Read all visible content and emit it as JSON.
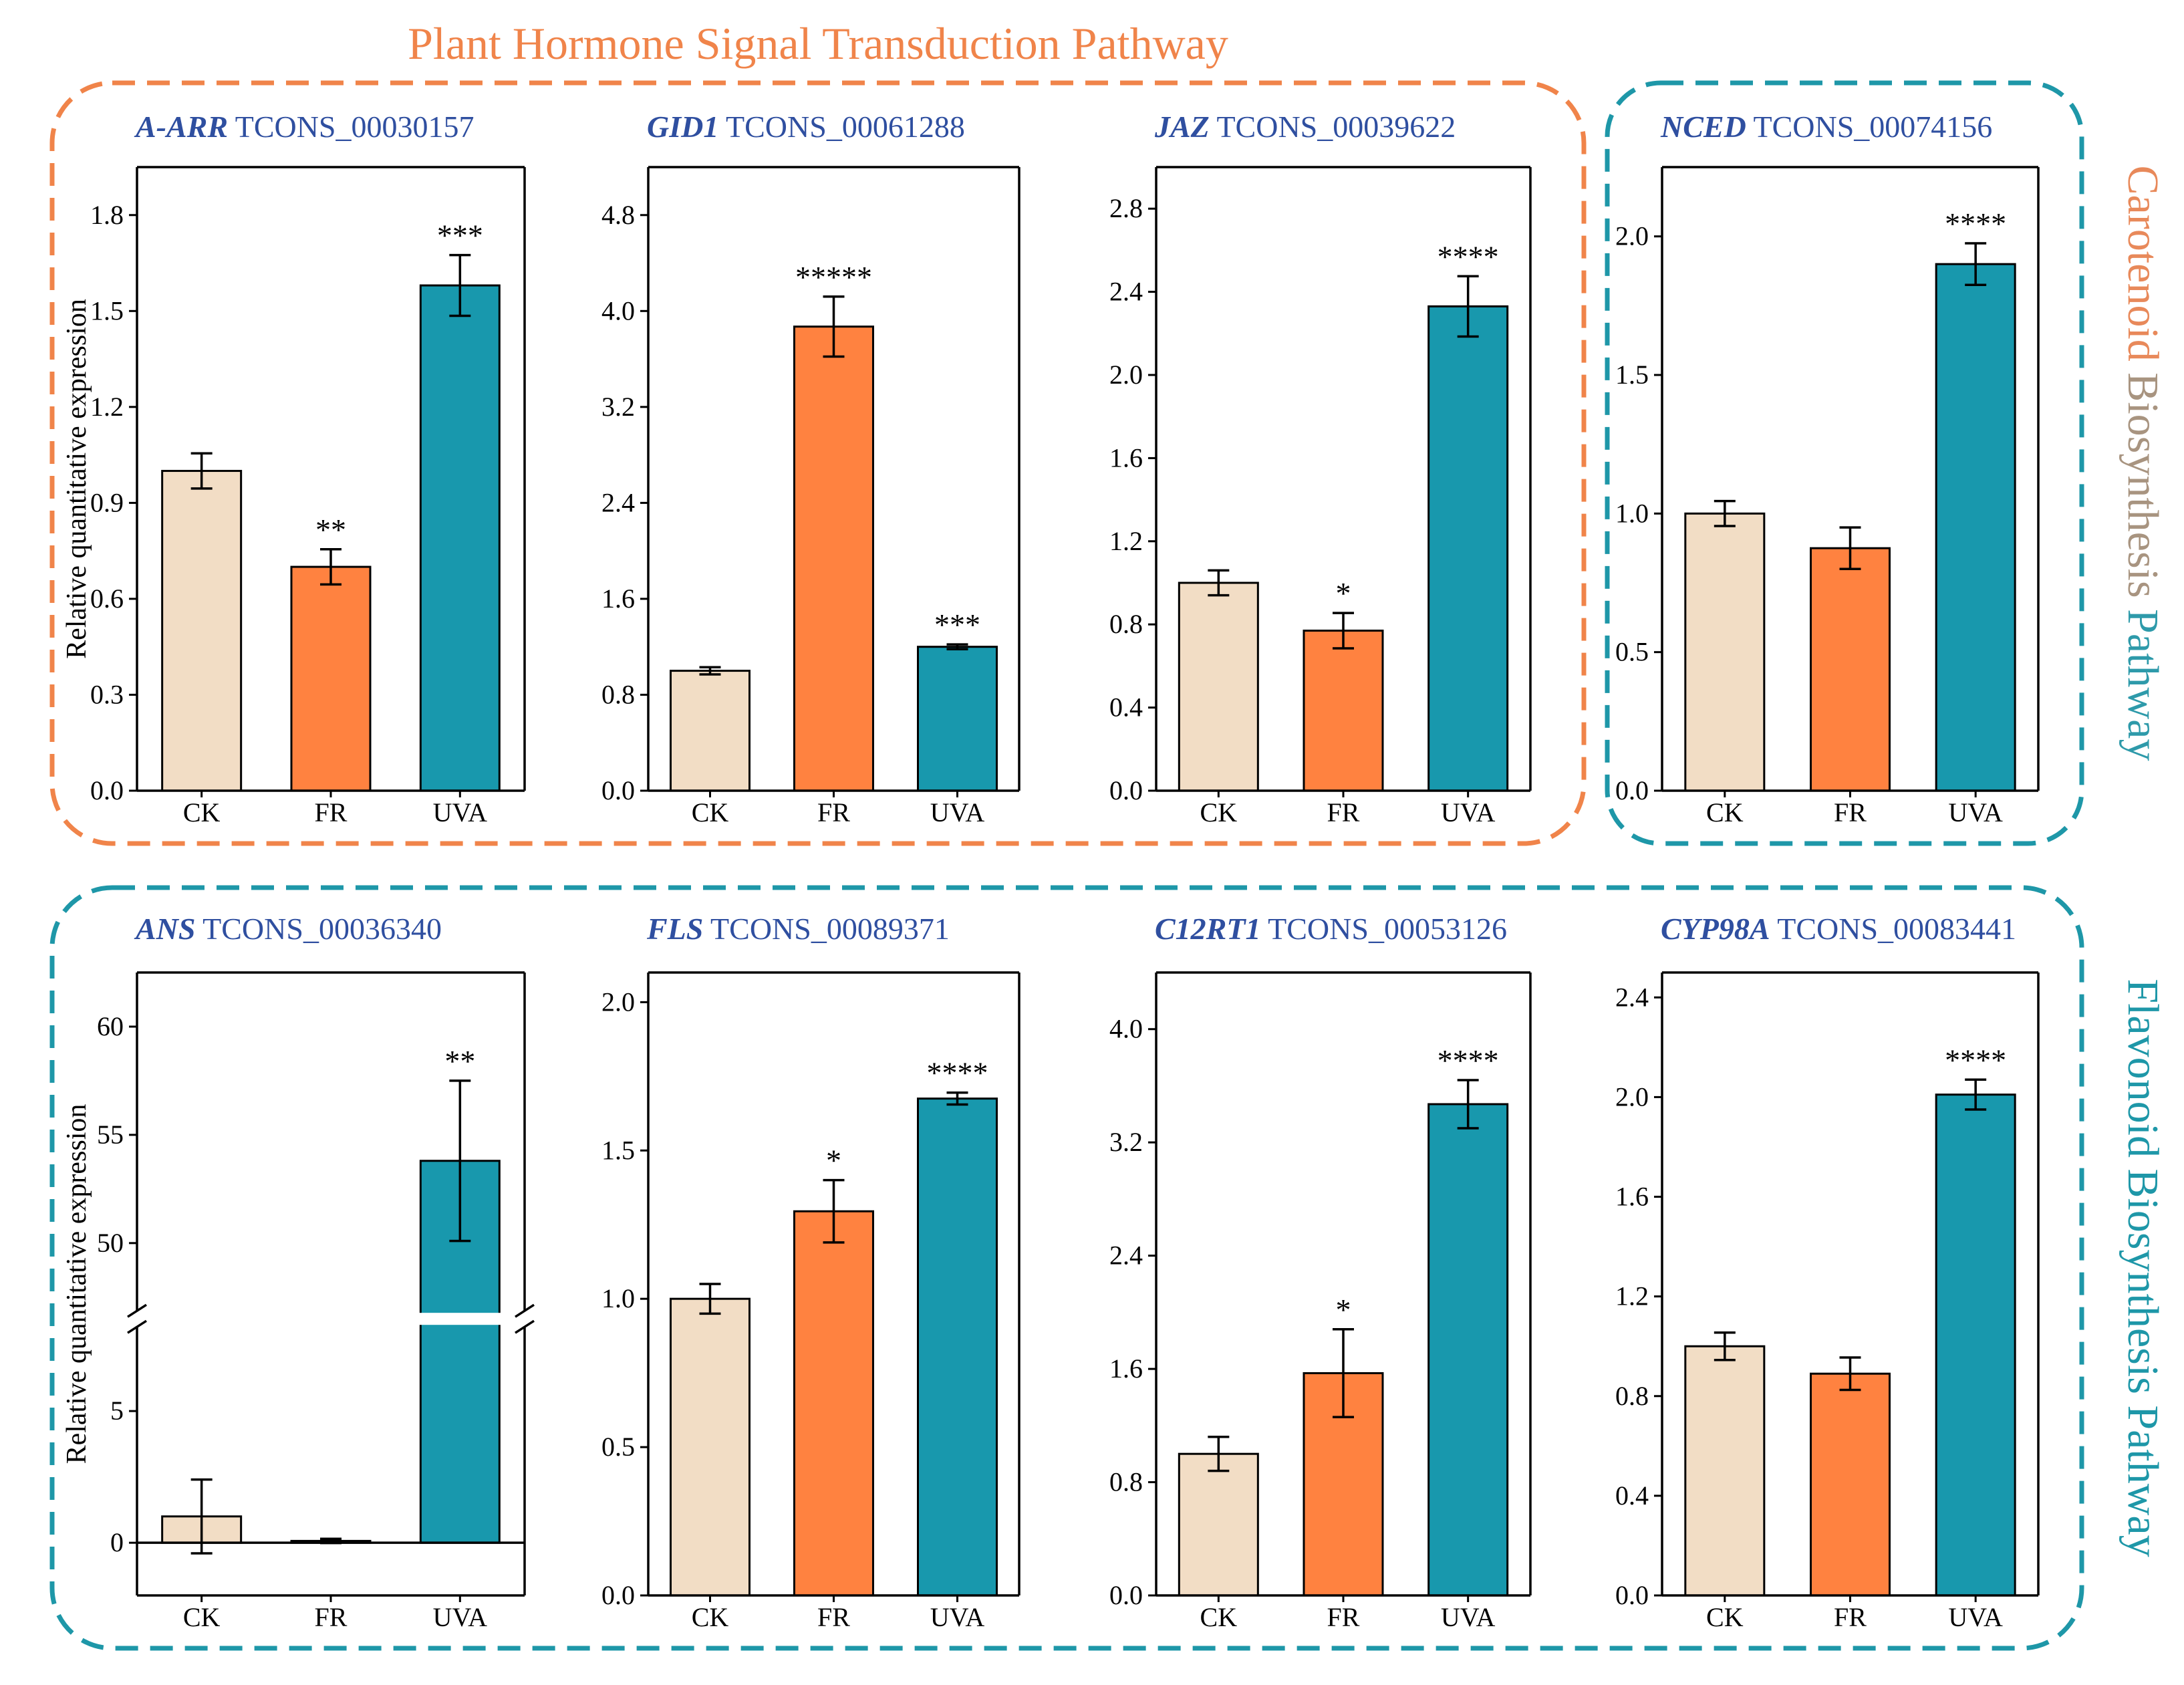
{
  "titles": {
    "top": "Plant Hormone Signal Transduction Pathway",
    "right_top": [
      "Carotenoid",
      "Biosynthesis",
      "Pathway"
    ],
    "right_bottom": "Flavonoid Biosynthesis Pathway"
  },
  "colors": {
    "CK": "#F2DDC5",
    "FR": "#FF8240",
    "UVA": "#1898AD",
    "orange_frame": "#F0844A",
    "teal_frame": "#1E97A8",
    "gene_text": "#2F4FA0"
  },
  "chart_data": [
    {
      "type": "bar",
      "gene": "A-ARR",
      "transcript": "TCONS_00030157",
      "categories": [
        "CK",
        "FR",
        "UVA"
      ],
      "values": [
        1.0,
        0.7,
        1.58
      ],
      "errors": [
        0.055,
        0.055,
        0.095
      ],
      "significance": [
        "",
        "**",
        "***"
      ],
      "ylabel": "Relative quantitative expression",
      "ylim": [
        0,
        1.95
      ],
      "yticks": [
        "0.0",
        "0.3",
        "0.6",
        "0.9",
        "1.2",
        "1.5",
        "1.8"
      ]
    },
    {
      "type": "bar",
      "gene": "GID1",
      "transcript": "TCONS_00061288",
      "categories": [
        "CK",
        "FR",
        "UVA"
      ],
      "values": [
        1.0,
        3.87,
        1.2
      ],
      "errors": [
        0.03,
        0.25,
        0.02
      ],
      "significance": [
        "",
        "*****",
        "***"
      ],
      "ylabel": "",
      "ylim": [
        0,
        5.2
      ],
      "yticks": [
        "0.0",
        "0.8",
        "1.6",
        "2.4",
        "3.2",
        "4.0",
        "4.8"
      ]
    },
    {
      "type": "bar",
      "gene": "JAZ",
      "transcript": "TCONS_00039622",
      "categories": [
        "CK",
        "FR",
        "UVA"
      ],
      "values": [
        1.0,
        0.77,
        2.33
      ],
      "errors": [
        0.06,
        0.085,
        0.145
      ],
      "significance": [
        "",
        "*",
        "****"
      ],
      "ylabel": "",
      "ylim": [
        0,
        3.0
      ],
      "yticks": [
        "0.0",
        "0.4",
        "0.8",
        "1.2",
        "1.6",
        "2.0",
        "2.4",
        "2.8"
      ]
    },
    {
      "type": "bar",
      "gene": "NCED",
      "transcript": "TCONS_00074156",
      "categories": [
        "CK",
        "FR",
        "UVA"
      ],
      "values": [
        1.0,
        0.875,
        1.9
      ],
      "errors": [
        0.045,
        0.075,
        0.075
      ],
      "significance": [
        "",
        "",
        "****"
      ],
      "ylabel": "",
      "ylim": [
        0,
        2.25
      ],
      "yticks": [
        "0.0",
        "0.5",
        "1.0",
        "1.5",
        "2.0"
      ]
    },
    {
      "type": "bar",
      "gene": "ANS",
      "transcript": "TCONS_00036340",
      "categories": [
        "CK",
        "FR",
        "UVA"
      ],
      "values": [
        1.0,
        0.07,
        53.8
      ],
      "errors": [
        1.4,
        0.08,
        3.7
      ],
      "significance": [
        "",
        "",
        "**"
      ],
      "ylabel": "Relative quantitative expression",
      "axis_break": true,
      "ylim_lower": [
        -2,
        8.5
      ],
      "ylim_upper": [
        46.5,
        62.5
      ],
      "yticks_lower": [
        "0",
        "5"
      ],
      "yticks_upper": [
        "50",
        "55",
        "60"
      ]
    },
    {
      "type": "bar",
      "gene": "FLS",
      "transcript": "TCONS_00089371",
      "categories": [
        "CK",
        "FR",
        "UVA"
      ],
      "values": [
        1.0,
        1.295,
        1.675
      ],
      "errors": [
        0.05,
        0.105,
        0.02
      ],
      "significance": [
        "",
        "*",
        "****"
      ],
      "ylabel": "",
      "ylim": [
        0,
        2.1
      ],
      "yticks": [
        "0.0",
        "0.5",
        "1.0",
        "1.5",
        "2.0"
      ]
    },
    {
      "type": "bar",
      "gene": "C12RT1",
      "transcript": "TCONS_00053126",
      "categories": [
        "CK",
        "FR",
        "UVA"
      ],
      "values": [
        1.0,
        1.57,
        3.47
      ],
      "errors": [
        0.12,
        0.31,
        0.17
      ],
      "significance": [
        "",
        "*",
        "****"
      ],
      "ylabel": "",
      "ylim": [
        0,
        4.4
      ],
      "yticks": [
        "0.0",
        "0.8",
        "1.6",
        "2.4",
        "3.2",
        "4.0"
      ]
    },
    {
      "type": "bar",
      "gene": "CYP98A",
      "transcript": "TCONS_00083441",
      "categories": [
        "CK",
        "FR",
        "UVA"
      ],
      "values": [
        1.0,
        0.89,
        2.01
      ],
      "errors": [
        0.055,
        0.065,
        0.06
      ],
      "significance": [
        "",
        "",
        "****"
      ],
      "ylabel": "",
      "ylim": [
        0,
        2.5
      ],
      "yticks": [
        "0.0",
        "0.4",
        "0.8",
        "1.2",
        "1.6",
        "2.0",
        "2.4"
      ]
    }
  ]
}
